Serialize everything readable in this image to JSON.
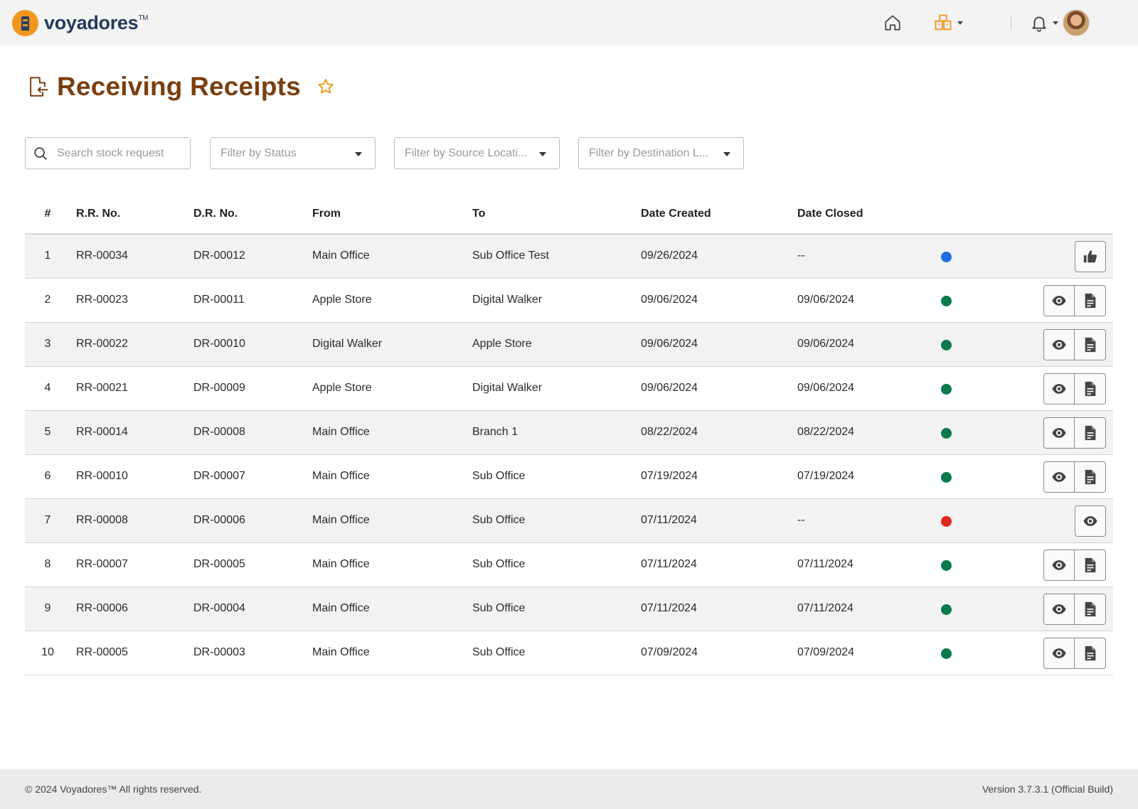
{
  "brand": {
    "name": "voyadores",
    "tm": "TM"
  },
  "header": {
    "icons": {
      "home": "home-icon",
      "store": "store-icon",
      "notifications": "bell-icon"
    }
  },
  "page": {
    "title": "Receiving Receipts"
  },
  "filters": {
    "search_placeholder": "Search stock request",
    "status": "Filter by Status",
    "source": "Filter by Source Locati...",
    "destination": "Filter by Destination L..."
  },
  "table": {
    "headers": {
      "num": "#",
      "rr": "R.R. No.",
      "dr": "D.R. No.",
      "from": "From",
      "to": "To",
      "date_created": "Date Created",
      "date_closed": "Date Closed"
    },
    "rows": [
      {
        "num": "1",
        "rr": "RR-00034",
        "dr": "DR-00012",
        "from": "Main Office",
        "to": "Sub Office Test",
        "date_created": "09/26/2024",
        "date_closed": "--",
        "status_color": "#1f6fe0",
        "actions": [
          "approve"
        ]
      },
      {
        "num": "2",
        "rr": "RR-00023",
        "dr": "DR-00011",
        "from": "Apple Store",
        "to": "Digital Walker",
        "date_created": "09/06/2024",
        "date_closed": "09/06/2024",
        "status_color": "#0a7a4c",
        "actions": [
          "view",
          "document"
        ]
      },
      {
        "num": "3",
        "rr": "RR-00022",
        "dr": "DR-00010",
        "from": "Digital Walker",
        "to": "Apple Store",
        "date_created": "09/06/2024",
        "date_closed": "09/06/2024",
        "status_color": "#0a7a4c",
        "actions": [
          "view",
          "document"
        ]
      },
      {
        "num": "4",
        "rr": "RR-00021",
        "dr": "DR-00009",
        "from": "Apple Store",
        "to": "Digital Walker",
        "date_created": "09/06/2024",
        "date_closed": "09/06/2024",
        "status_color": "#0a7a4c",
        "actions": [
          "view",
          "document"
        ]
      },
      {
        "num": "5",
        "rr": "RR-00014",
        "dr": "DR-00008",
        "from": "Main Office",
        "to": "Branch 1",
        "date_created": "08/22/2024",
        "date_closed": "08/22/2024",
        "status_color": "#0a7a4c",
        "actions": [
          "view",
          "document"
        ]
      },
      {
        "num": "6",
        "rr": "RR-00010",
        "dr": "DR-00007",
        "from": "Main Office",
        "to": "Sub Office",
        "date_created": "07/19/2024",
        "date_closed": "07/19/2024",
        "status_color": "#0a7a4c",
        "actions": [
          "view",
          "document"
        ]
      },
      {
        "num": "7",
        "rr": "RR-00008",
        "dr": "DR-00006",
        "from": "Main Office",
        "to": "Sub Office",
        "date_created": "07/11/2024",
        "date_closed": "--",
        "status_color": "#e0241e",
        "actions": [
          "view"
        ]
      },
      {
        "num": "8",
        "rr": "RR-00007",
        "dr": "DR-00005",
        "from": "Main Office",
        "to": "Sub Office",
        "date_created": "07/11/2024",
        "date_closed": "07/11/2024",
        "status_color": "#0a7a4c",
        "actions": [
          "view",
          "document"
        ]
      },
      {
        "num": "9",
        "rr": "RR-00006",
        "dr": "DR-00004",
        "from": "Main Office",
        "to": "Sub Office",
        "date_created": "07/11/2024",
        "date_closed": "07/11/2024",
        "status_color": "#0a7a4c",
        "actions": [
          "view",
          "document"
        ]
      },
      {
        "num": "10",
        "rr": "RR-00005",
        "dr": "DR-00003",
        "from": "Main Office",
        "to": "Sub Office",
        "date_created": "07/09/2024",
        "date_closed": "07/09/2024",
        "status_color": "#0a7a4c",
        "actions": [
          "view",
          "document"
        ]
      }
    ]
  },
  "footer": {
    "copyright": "© 2024 Voyadores™ All rights reserved.",
    "version": "Version 3.7.3.1 (Official Build)"
  },
  "colors": {
    "title": "#7a3f10",
    "brand": "#243a5e",
    "accent": "#f2951d"
  }
}
